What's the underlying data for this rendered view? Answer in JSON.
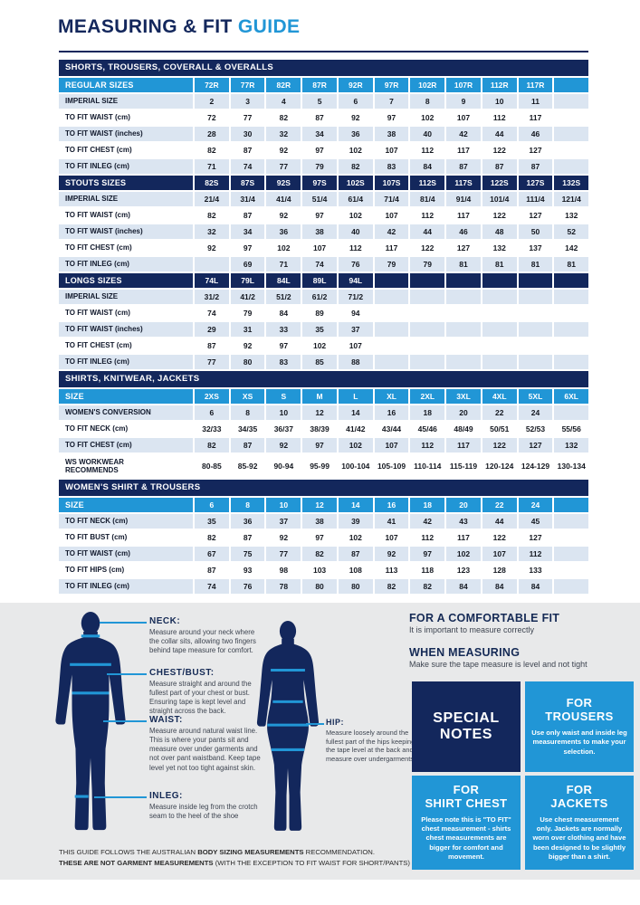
{
  "colors": {
    "navy": "#13275C",
    "blue": "#2196D6",
    "row_alt": "#DBE5F1",
    "panel_gray": "#E8E9EA"
  },
  "title": {
    "main": "MEASURING & FIT ",
    "accent": "GUIDE"
  },
  "size_tables": {
    "rows": [
      {
        "type": "section",
        "label": "SHORTS, TROUSERS, COVERALL & OVERALLS"
      },
      {
        "type": "row",
        "style": "blue",
        "label": "REGULAR SIZES",
        "cells": [
          "72R",
          "77R",
          "82R",
          "87R",
          "92R",
          "97R",
          "102R",
          "107R",
          "112R",
          "117R",
          ""
        ]
      },
      {
        "type": "row",
        "style": "alt",
        "label": "IMPERIAL SIZE",
        "cells": [
          "2",
          "3",
          "4",
          "5",
          "6",
          "7",
          "8",
          "9",
          "10",
          "11",
          ""
        ]
      },
      {
        "type": "row",
        "style": "white",
        "label": "TO FIT WAIST (cm)",
        "cells": [
          "72",
          "77",
          "82",
          "87",
          "92",
          "97",
          "102",
          "107",
          "112",
          "117",
          ""
        ]
      },
      {
        "type": "row",
        "style": "alt",
        "label": "TO FIT WAIST (inches)",
        "cells": [
          "28",
          "30",
          "32",
          "34",
          "36",
          "38",
          "40",
          "42",
          "44",
          "46",
          ""
        ]
      },
      {
        "type": "row",
        "style": "white",
        "label": "TO FIT CHEST (cm)",
        "cells": [
          "82",
          "87",
          "92",
          "97",
          "102",
          "107",
          "112",
          "117",
          "122",
          "127",
          ""
        ]
      },
      {
        "type": "row",
        "style": "alt",
        "label": "TO FIT INLEG (cm)",
        "cells": [
          "71",
          "74",
          "77",
          "79",
          "82",
          "83",
          "84",
          "87",
          "87",
          "87",
          ""
        ]
      },
      {
        "type": "row",
        "style": "navy",
        "label": "STOUTS SIZES",
        "cells": [
          "82S",
          "87S",
          "92S",
          "97S",
          "102S",
          "107S",
          "112S",
          "117S",
          "122S",
          "127S",
          "132S"
        ]
      },
      {
        "type": "row",
        "style": "alt",
        "label": "IMPERIAL SIZE",
        "cells": [
          "21/4",
          "31/4",
          "41/4",
          "51/4",
          "61/4",
          "71/4",
          "81/4",
          "91/4",
          "101/4",
          "111/4",
          "121/4"
        ]
      },
      {
        "type": "row",
        "style": "white",
        "label": "TO FIT WAIST (cm)",
        "cells": [
          "82",
          "87",
          "92",
          "97",
          "102",
          "107",
          "112",
          "117",
          "122",
          "127",
          "132"
        ]
      },
      {
        "type": "row",
        "style": "alt",
        "label": "TO FIT WAIST (inches)",
        "cells": [
          "32",
          "34",
          "36",
          "38",
          "40",
          "42",
          "44",
          "46",
          "48",
          "50",
          "52"
        ]
      },
      {
        "type": "row",
        "style": "white",
        "label": "TO FIT CHEST (cm)",
        "cells": [
          "92",
          "97",
          "102",
          "107",
          "112",
          "117",
          "122",
          "127",
          "132",
          "137",
          "142"
        ]
      },
      {
        "type": "row",
        "style": "alt",
        "label": "TO FIT INLEG (cm)",
        "cells": [
          "",
          "69",
          "71",
          "74",
          "76",
          "79",
          "79",
          "81",
          "81",
          "81",
          "81"
        ]
      },
      {
        "type": "row",
        "style": "navy",
        "label": "LONGS SIZES",
        "cells": [
          "74L",
          "79L",
          "84L",
          "89L",
          "94L",
          "",
          "",
          "",
          "",
          "",
          ""
        ]
      },
      {
        "type": "row",
        "style": "alt",
        "label": "IMPERIAL SIZE",
        "cells": [
          "31/2",
          "41/2",
          "51/2",
          "61/2",
          "71/2",
          "",
          "",
          "",
          "",
          "",
          ""
        ]
      },
      {
        "type": "row",
        "style": "white",
        "label": "TO FIT WAIST (cm)",
        "cells": [
          "74",
          "79",
          "84",
          "89",
          "94",
          "",
          "",
          "",
          "",
          "",
          ""
        ]
      },
      {
        "type": "row",
        "style": "alt",
        "label": "TO FIT WAIST (inches)",
        "cells": [
          "29",
          "31",
          "33",
          "35",
          "37",
          "",
          "",
          "",
          "",
          "",
          ""
        ]
      },
      {
        "type": "row",
        "style": "white",
        "label": "TO FIT CHEST (cm)",
        "cells": [
          "87",
          "92",
          "97",
          "102",
          "107",
          "",
          "",
          "",
          "",
          "",
          ""
        ]
      },
      {
        "type": "row",
        "style": "alt",
        "label": "TO FIT INLEG (cm)",
        "cells": [
          "77",
          "80",
          "83",
          "85",
          "88",
          "",
          "",
          "",
          "",
          "",
          ""
        ]
      },
      {
        "type": "section",
        "label": "SHIRTS, KNITWEAR, JACKETS"
      },
      {
        "type": "row",
        "style": "blue",
        "label": "SIZE",
        "cells": [
          "2XS",
          "XS",
          "S",
          "M",
          "L",
          "XL",
          "2XL",
          "3XL",
          "4XL",
          "5XL",
          "6XL"
        ]
      },
      {
        "type": "row",
        "style": "alt",
        "label": "WOMEN'S CONVERSION",
        "cells": [
          "6",
          "8",
          "10",
          "12",
          "14",
          "16",
          "18",
          "20",
          "22",
          "24",
          ""
        ]
      },
      {
        "type": "row",
        "style": "white",
        "label": "TO FIT NECK (cm)",
        "cells": [
          "32/33",
          "34/35",
          "36/37",
          "38/39",
          "41/42",
          "43/44",
          "45/46",
          "48/49",
          "50/51",
          "52/53",
          "55/56"
        ]
      },
      {
        "type": "row",
        "style": "alt",
        "label": "TO FIT CHEST (cm)",
        "cells": [
          "82",
          "87",
          "92",
          "97",
          "102",
          "107",
          "112",
          "117",
          "122",
          "127",
          "132"
        ]
      },
      {
        "type": "row",
        "style": "white tall",
        "label": "WS WORKWEAR\nRECOMMENDS",
        "cells": [
          "80-85",
          "85-92",
          "90-94",
          "95-99",
          "100-104",
          "105-109",
          "110-114",
          "115-119",
          "120-124",
          "124-129",
          "130-134"
        ]
      },
      {
        "type": "section",
        "label": "WOMEN'S SHIRT & TROUSERS"
      },
      {
        "type": "row",
        "style": "blue",
        "label": "SIZE",
        "cells": [
          "6",
          "8",
          "10",
          "12",
          "14",
          "16",
          "18",
          "20",
          "22",
          "24",
          ""
        ]
      },
      {
        "type": "row",
        "style": "alt",
        "label": "TO FIT NECK (cm)",
        "cells": [
          "35",
          "36",
          "37",
          "38",
          "39",
          "41",
          "42",
          "43",
          "44",
          "45",
          ""
        ]
      },
      {
        "type": "row",
        "style": "white",
        "label": "TO FIT BUST (cm)",
        "cells": [
          "82",
          "87",
          "92",
          "97",
          "102",
          "107",
          "112",
          "117",
          "122",
          "127",
          ""
        ]
      },
      {
        "type": "row",
        "style": "alt",
        "label": "TO FIT WAIST (cm)",
        "cells": [
          "67",
          "75",
          "77",
          "82",
          "87",
          "92",
          "97",
          "102",
          "107",
          "112",
          ""
        ]
      },
      {
        "type": "row",
        "style": "white",
        "label": "TO FIT HIPS (cm)",
        "cells": [
          "87",
          "93",
          "98",
          "103",
          "108",
          "113",
          "118",
          "123",
          "128",
          "133",
          ""
        ]
      },
      {
        "type": "row",
        "style": "alt",
        "label": "TO FIT INLEG (cm)",
        "cells": [
          "74",
          "76",
          "78",
          "80",
          "80",
          "82",
          "82",
          "84",
          "84",
          "84",
          ""
        ]
      }
    ]
  },
  "measure": {
    "callouts": [
      {
        "label": "NECK:",
        "text": "Measure around your neck where the collar sits, allowing two fingers behind tape measure for comfort."
      },
      {
        "label": "CHEST/BUST:",
        "text": "Measure straight and around the fullest part of your chest or bust. Ensuring tape is kept level and straight across the back."
      },
      {
        "label": "WAIST:",
        "text": "Measure around natural waist line. This is where your pants sit and measure over under garments and not over pant waistband. Keep tape level yet not too tight against skin."
      },
      {
        "label": "INLEG:",
        "text": "Measure inside leg from the crotch seam to the heel of the shoe"
      }
    ],
    "hip": {
      "label": "HIP:",
      "text": "Measure loosely around the fullest part of the hips keeping the tape level at the back and measure over undergarments."
    }
  },
  "fit_info": {
    "comfortable_fit_title": "FOR A COMFORTABLE FIT",
    "comfortable_fit_text": "It is important to measure correctly",
    "when_measuring_title": "WHEN MEASURING",
    "when_measuring_text": "Make sure the tape measure is level and not tight",
    "boxes": [
      {
        "style": "navy",
        "title": "SPECIAL\nNOTES",
        "text": ""
      },
      {
        "style": "blue",
        "title": "FOR\nTROUSERS",
        "text": "Use only waist and inside leg measurements to make your selection."
      },
      {
        "style": "blue",
        "title": "FOR\nSHIRT CHEST",
        "text": "Please note this is \"TO FIT\" chest measurement - shirts chest measurements are bigger for comfort and movement."
      },
      {
        "style": "blue",
        "title": "FOR\nJACKETS",
        "text": "Use chest measurement only. Jackets are normally worn over clothing and have been designed to be slightly bigger than a shirt."
      }
    ]
  },
  "footer": {
    "line1_normal1": "THIS GUIDE FOLLOWS THE AUSTRALIAN ",
    "line1_bold": "BODY SIZING MEASUREMENTS",
    "line1_normal2": " RECOMMENDATION.",
    "line2_bold": "THESE ARE NOT GARMENT MEASUREMENTS",
    "line2_normal": " (WITH THE EXCEPTION TO FIT WAIST FOR SHORT/PANTS)"
  }
}
